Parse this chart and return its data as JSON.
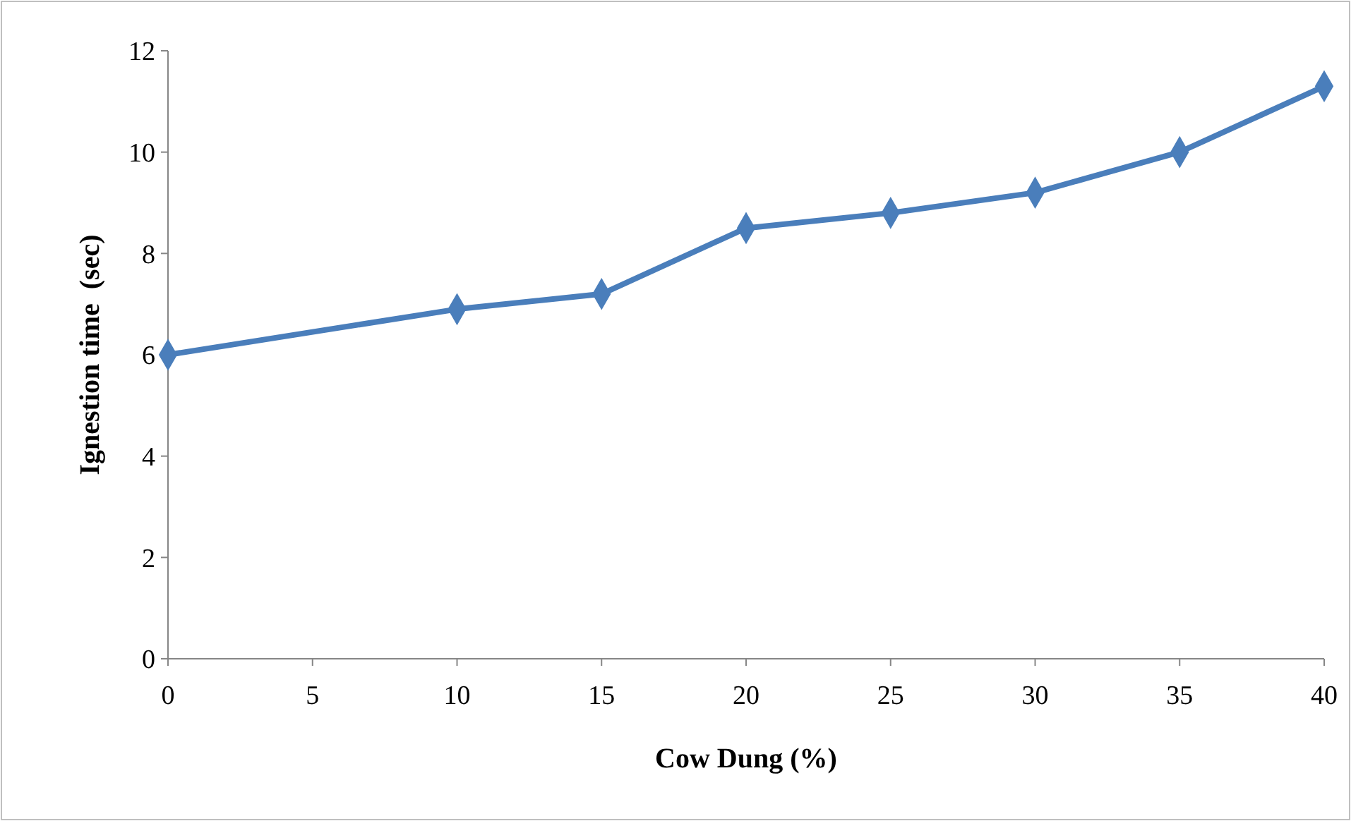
{
  "chart_data": {
    "type": "line",
    "xlabel": "Cow Dung (%)",
    "ylabel": "Ignestion time  (sec)",
    "x": [
      0,
      10,
      15,
      20,
      25,
      30,
      35,
      40
    ],
    "series": [
      {
        "color": "#4a7ebb",
        "values": [
          6,
          6.9,
          7.2,
          8.5,
          8.8,
          9.2,
          10,
          11.3
        ]
      }
    ],
    "xlim": [
      0,
      40
    ],
    "xticks": [
      0,
      5,
      10,
      15,
      20,
      25,
      30,
      35,
      40
    ],
    "ylim": [
      0,
      12
    ],
    "yticks": [
      0,
      2,
      4,
      6,
      8,
      10,
      12
    ],
    "grid": false,
    "marker": "diamond",
    "line_style": "solid"
  }
}
